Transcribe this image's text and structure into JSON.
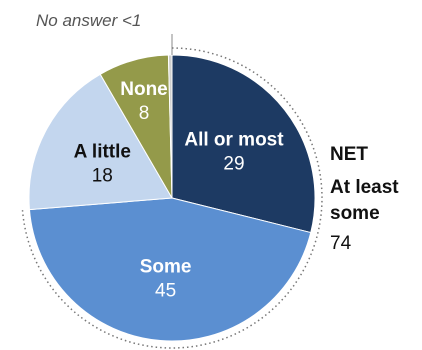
{
  "chart_data": {
    "type": "pie",
    "start_at": "top",
    "direction": "clockwise",
    "slices": [
      {
        "name": "All or most",
        "value": 29,
        "color": "#1d3a63",
        "text_color": "#ffffff"
      },
      {
        "name": "Some",
        "value": 45,
        "color": "#5b8fd1",
        "text_color": "#ffffff"
      },
      {
        "name": "A little",
        "value": 18,
        "color": "#c3d6ee",
        "text_color": "#111111"
      },
      {
        "name": "None",
        "value": 8,
        "color": "#949a4a",
        "text_color": "#ffffff"
      },
      {
        "name": "No answer",
        "value": "<1",
        "color": "#cfcfcf",
        "text_color": "#555555"
      }
    ],
    "annotation": "No answer <1",
    "net_bracket": {
      "lines": [
        "NET",
        "At least",
        "some"
      ],
      "value": 74,
      "covers": [
        "All or most",
        "Some"
      ]
    }
  }
}
